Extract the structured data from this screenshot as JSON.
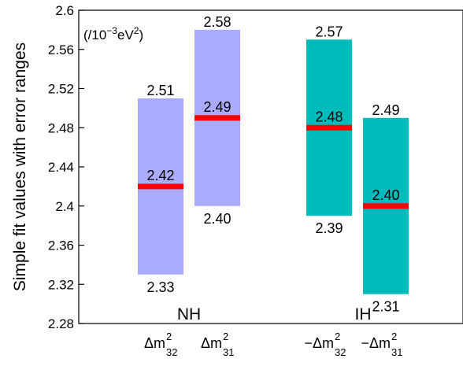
{
  "chart_data": {
    "type": "bar",
    "ylabel": "Simple fit values with error ranges",
    "unit_label": {
      "prefix": "(/10",
      "exp": "−3",
      "mid": "eV",
      "exp2": "2",
      "suffix": ")"
    },
    "ylim": [
      2.28,
      2.6
    ],
    "yticks": [
      "2.28",
      "2.32",
      "2.36",
      "2.4",
      "2.44",
      "2.48",
      "2.52",
      "2.56",
      "2.6"
    ],
    "grid": false,
    "groups": [
      {
        "name": "NH"
      },
      {
        "name": "IH"
      }
    ],
    "bars": [
      {
        "group": 0,
        "label_prefix": "Δm",
        "label_sub": "32",
        "label_sup": "2",
        "low": 2.33,
        "best": 2.42,
        "high": 2.51,
        "low_text": "2.33",
        "best_text": "2.42",
        "high_text": "2.51",
        "color": "#aaaaff"
      },
      {
        "group": 0,
        "label_prefix": "Δm",
        "label_sub": "31",
        "label_sup": "2",
        "low": 2.4,
        "best": 2.49,
        "high": 2.58,
        "low_text": "2.40",
        "best_text": "2.49",
        "high_text": "2.58",
        "color": "#aaaaff"
      },
      {
        "group": 1,
        "label_prefix": "−Δm",
        "label_sub": "32",
        "label_sup": "2",
        "low": 2.39,
        "best": 2.48,
        "high": 2.57,
        "low_text": "2.39",
        "best_text": "2.48",
        "high_text": "2.57",
        "color": "#00bbbb"
      },
      {
        "group": 1,
        "label_prefix": "−Δm",
        "label_sub": "31",
        "label_sup": "2",
        "low": 2.31,
        "best": 2.4,
        "high": 2.49,
        "low_text": "2.31",
        "best_text": "2.40",
        "high_text": "2.49",
        "color": "#00bbbb"
      }
    ],
    "best_fit_color": "#ff0000"
  }
}
